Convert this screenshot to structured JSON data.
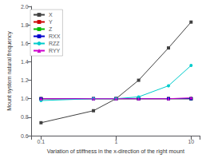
{
  "chart_data": {
    "type": "line",
    "xlabel": "Variation of stiffness in the x-direction of the right mount",
    "ylabel": "Mount system natural frequency",
    "x": [
      0.1,
      0.5,
      1.0,
      2.0,
      5.0,
      10.0
    ],
    "series": [
      {
        "name": "X",
        "color": "#404040",
        "marker": "square",
        "values": [
          0.74,
          0.87,
          1.0,
          1.2,
          1.55,
          1.83
        ]
      },
      {
        "name": "Y",
        "color": "#cc0000",
        "marker": "square",
        "values": [
          1.0,
          1.0,
          1.0,
          1.0,
          1.0,
          1.0
        ]
      },
      {
        "name": "Z",
        "color": "#00bb00",
        "marker": "square",
        "values": [
          1.0,
          1.0,
          1.0,
          1.0,
          1.0,
          1.0
        ]
      },
      {
        "name": "RXX",
        "color": "#0000cc",
        "marker": "square",
        "values": [
          1.0,
          1.0,
          1.0,
          1.0,
          1.0,
          1.0
        ]
      },
      {
        "name": "RZZ",
        "color": "#00cccc",
        "marker": "circle",
        "values": [
          0.98,
          1.0,
          1.0,
          1.02,
          1.14,
          1.36
        ]
      },
      {
        "name": "RYY",
        "color": "#cc00cc",
        "marker": "triangle",
        "values": [
          1.0,
          1.0,
          1.0,
          1.0,
          1.0,
          1.01
        ]
      }
    ],
    "log": "x",
    "xlim": [
      0.075,
      13
    ],
    "xticks": [
      0.1,
      1,
      10
    ],
    "ylim": [
      0.6,
      2.0
    ],
    "yticks": [
      0.6,
      0.8,
      {
        "value": 1.0,
        "label": "1.0"
      },
      1.2,
      1.4,
      1.6,
      1.8,
      {
        "value": 2.0,
        "label": "2.0"
      }
    ],
    "grid": false,
    "legend": "upper left"
  }
}
